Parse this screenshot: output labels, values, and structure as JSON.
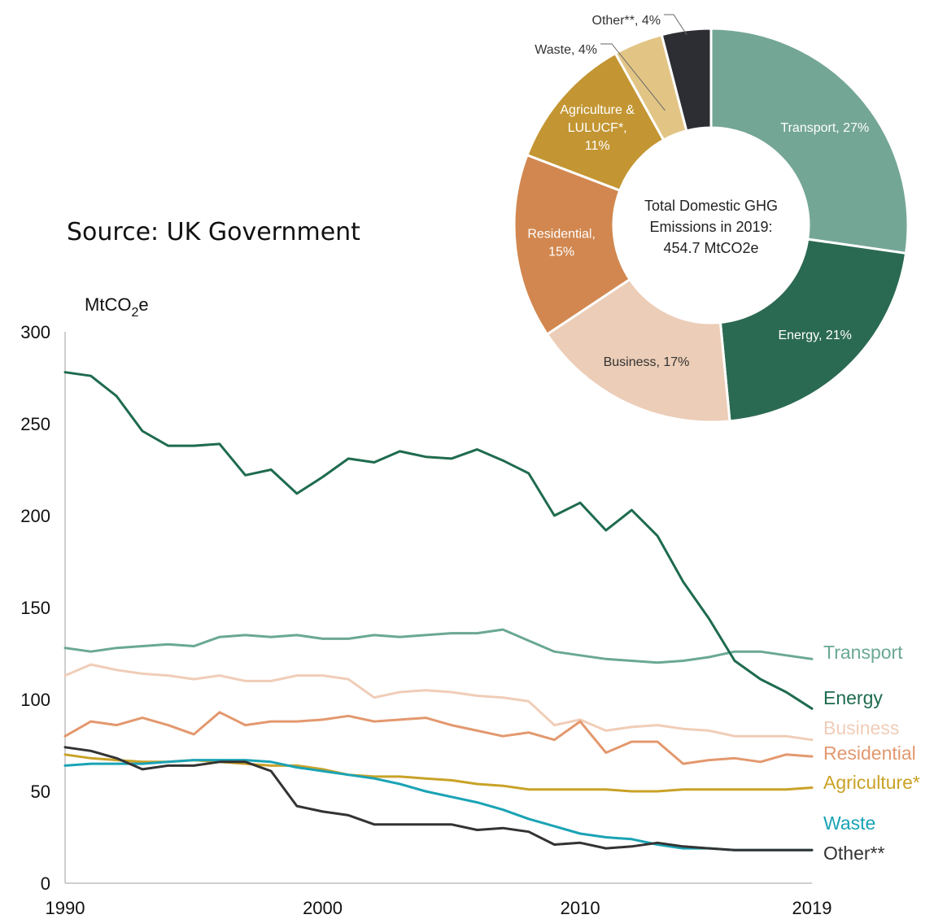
{
  "source_note": "Source: UK Government",
  "chart_data": [
    {
      "type": "line",
      "ylabel": "MtCO2e",
      "ylabel_main": "MtCO",
      "ylabel_sub": "2",
      "ylabel_tail": "e",
      "xlim": [
        1990,
        2019
      ],
      "ylim": [
        0,
        300
      ],
      "x_ticks": [
        1990,
        2000,
        2010,
        2019
      ],
      "y_ticks": [
        0,
        50,
        100,
        150,
        200,
        250,
        300
      ],
      "x": [
        1990,
        1991,
        1992,
        1993,
        1994,
        1995,
        1996,
        1997,
        1998,
        1999,
        2000,
        2001,
        2002,
        2003,
        2004,
        2005,
        2006,
        2007,
        2008,
        2009,
        2010,
        2011,
        2012,
        2013,
        2014,
        2015,
        2016,
        2017,
        2018,
        2019
      ],
      "series": [
        {
          "name": "Transport",
          "color": "#6aa894",
          "values": [
            128,
            126,
            128,
            129,
            130,
            129,
            134,
            135,
            134,
            135,
            133,
            133,
            135,
            134,
            135,
            136,
            136,
            138,
            132,
            126,
            124,
            122,
            121,
            120,
            121,
            123,
            126,
            126,
            124,
            122
          ]
        },
        {
          "name": "Energy",
          "color": "#1e6b4e",
          "values": [
            278,
            276,
            265,
            246,
            238,
            238,
            239,
            222,
            225,
            212,
            221,
            231,
            229,
            235,
            232,
            231,
            236,
            230,
            223,
            200,
            207,
            192,
            203,
            189,
            164,
            144,
            121,
            111,
            104,
            95
          ]
        },
        {
          "name": "Business",
          "color": "#f0cdb8",
          "values": [
            113,
            119,
            116,
            114,
            113,
            111,
            113,
            110,
            110,
            113,
            113,
            111,
            101,
            104,
            105,
            104,
            102,
            101,
            99,
            86,
            89,
            83,
            85,
            86,
            84,
            83,
            80,
            80,
            80,
            78
          ]
        },
        {
          "name": "Residential",
          "color": "#e3986e",
          "values": [
            80,
            88,
            86,
            90,
            86,
            81,
            93,
            86,
            88,
            88,
            89,
            91,
            88,
            89,
            90,
            86,
            83,
            80,
            82,
            78,
            88,
            71,
            77,
            77,
            65,
            67,
            68,
            66,
            70,
            69
          ]
        },
        {
          "name": "Agriculture*",
          "color": "#c9a227",
          "values": [
            70,
            68,
            67,
            66,
            66,
            67,
            66,
            65,
            64,
            64,
            62,
            59,
            58,
            58,
            57,
            56,
            54,
            53,
            51,
            51,
            51,
            51,
            50,
            50,
            51,
            51,
            51,
            51,
            51,
            52
          ]
        },
        {
          "name": "Waste",
          "color": "#1aa3b5",
          "values": [
            64,
            65,
            65,
            65,
            66,
            67,
            67,
            67,
            66,
            63,
            61,
            59,
            57,
            54,
            50,
            47,
            44,
            40,
            35,
            31,
            27,
            25,
            24,
            21,
            19,
            19,
            18,
            18,
            18,
            18
          ]
        },
        {
          "name": "Other**",
          "color": "#333333",
          "values": [
            74,
            72,
            68,
            62,
            64,
            64,
            66,
            66,
            61,
            42,
            39,
            37,
            32,
            32,
            32,
            32,
            29,
            30,
            28,
            21,
            22,
            19,
            20,
            22,
            20,
            19,
            18,
            18,
            18,
            18
          ]
        }
      ]
    },
    {
      "type": "pie",
      "center_text": [
        "Total Domestic GHG",
        "Emissions in 2019:",
        "454.7 MtCO2e"
      ],
      "slices": [
        {
          "lines": [
            "Transport, 27%"
          ],
          "value": 27,
          "color": "#74a696",
          "label_color": "#ffffff"
        },
        {
          "lines": [
            "Energy, 21%"
          ],
          "value": 21,
          "color": "#2b6a52",
          "label_color": "#ffffff"
        },
        {
          "lines": [
            "Business, 17%"
          ],
          "value": 17,
          "color": "#eccdb7",
          "label_color": "#333333"
        },
        {
          "lines": [
            "Residential,",
            "15%"
          ],
          "value": 15,
          "color": "#d1874f",
          "label_color": "#ffffff"
        },
        {
          "lines": [
            "Agriculture &",
            "LULUCF*,",
            "11%"
          ],
          "value": 11,
          "color": "#c39633",
          "label_color": "#ffffff"
        },
        {
          "lines": [
            "Waste, 4%"
          ],
          "value": 4,
          "color": "#e2c585",
          "label_color": "#333333",
          "outside": true
        },
        {
          "lines": [
            "Other**, 4%"
          ],
          "value": 4,
          "color": "#2d2e33",
          "label_color": "#333333",
          "outside": true
        }
      ]
    }
  ]
}
